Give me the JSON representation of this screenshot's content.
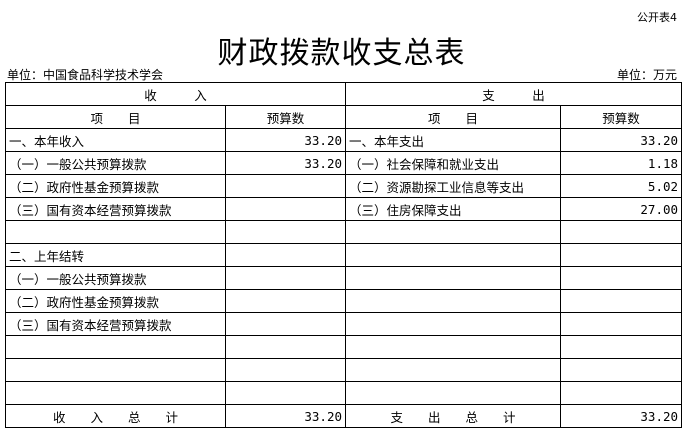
{
  "form_code": "公开表4",
  "title": "财政拨款收支总表",
  "unit_org": "单位：中国食品科学技术学会",
  "unit_money": "单位：万元",
  "headers": {
    "income": "收　　　入",
    "expense": "支　　　出",
    "item": "项　　目",
    "budget": "预算数"
  },
  "rows": [
    [
      "一、本年收入",
      "33.20",
      "一、本年支出",
      "33.20"
    ],
    [
      "（一）一般公共预算拨款",
      "33.20",
      "（一）社会保障和就业支出",
      "1.18"
    ],
    [
      "（二）政府性基金预算拨款",
      "",
      "（二）资源勘探工业信息等支出",
      "5.02"
    ],
    [
      "（三）国有资本经营预算拨款",
      "",
      "（三）住房保障支出",
      "27.00"
    ],
    [
      "",
      "",
      "",
      ""
    ],
    [
      "二、上年结转",
      "",
      "",
      ""
    ],
    [
      "（一）一般公共预算拨款",
      "",
      "",
      ""
    ],
    [
      "（二）政府性基金预算拨款",
      "",
      "",
      ""
    ],
    [
      "（三）国有资本经营预算拨款",
      "",
      "",
      ""
    ],
    [
      "",
      "",
      "",
      ""
    ],
    [
      "",
      "",
      "",
      ""
    ],
    [
      "",
      "",
      "",
      ""
    ]
  ],
  "totals": {
    "income_label": "收　　入　　总　　计",
    "income_value": "33.20",
    "expense_label": "支　　出　　总　　计",
    "expense_value": "33.20"
  }
}
